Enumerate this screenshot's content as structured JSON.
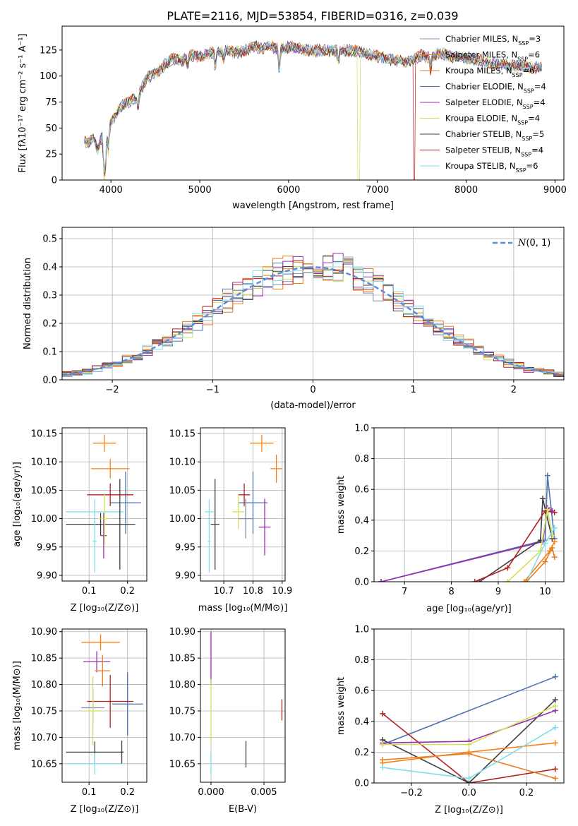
{
  "figure_title": "PLATE=2116, MJD=53854, FIBERID=0316, z=0.039",
  "colors": {
    "Chabrier MILES": "#7f8fb0",
    "Salpeter MILES": "#ff7f0e",
    "Kroupa MILES": "#e67e22",
    "Chabrier ELODIE": "#4c72b0",
    "Salpeter ELODIE": "#9b2fae",
    "Kroupa ELODIE": "#d4e157",
    "Chabrier STELIB": "#404040",
    "Salpeter STELIB": "#b22222",
    "Kroupa STELIB": "#80deea"
  },
  "chart_data": [
    {
      "id": "spectrum",
      "type": "line",
      "title": "PLATE=2116, MJD=53854, FIBERID=0316, z=0.039",
      "xlabel": "wavelength [Angstrom, rest frame]",
      "ylabel": "Flux [fλ10⁻¹⁷ erg cm⁻² s⁻¹ A⁻¹]",
      "xlim": [
        3450,
        9100
      ],
      "ylim": [
        0,
        148
      ],
      "xticks": [
        4000,
        5000,
        6000,
        7000,
        8000,
        9000
      ],
      "yticks": [
        0,
        25,
        50,
        75,
        100,
        125
      ],
      "grid": false,
      "legend_position": "top-right",
      "continuum": {
        "x": [
          3700,
          3750,
          3800,
          3850,
          3900,
          3920,
          3950,
          4000,
          4100,
          4200,
          4300,
          4400,
          4500,
          4600,
          4700,
          4800,
          4900,
          5000,
          5100,
          5200,
          5300,
          5400,
          5500,
          5600,
          5700,
          5800,
          5900,
          6000,
          6100,
          6200,
          6300,
          6400,
          6500,
          6600,
          6700,
          6800,
          6900,
          7000,
          7100,
          7200,
          7300,
          7400,
          7500,
          7600,
          7700,
          7800,
          7900,
          8000,
          8100,
          8200,
          8300,
          8400,
          8500,
          8600,
          8700,
          8800,
          8850
        ],
        "y": [
          38,
          34,
          42,
          30,
          42,
          18,
          45,
          55,
          70,
          75,
          80,
          98,
          102,
          110,
          117,
          115,
          120,
          119,
          122,
          123,
          126,
          122,
          124,
          128,
          127,
          128,
          126,
          128,
          127,
          125,
          124,
          125,
          124,
          124,
          125,
          123,
          121,
          119,
          117,
          115,
          114,
          115,
          120,
          118,
          122,
          120,
          118,
          117,
          116,
          114,
          112,
          111,
          110,
          110,
          109,
          108,
          108
        ]
      },
      "dips": [
        {
          "x": 3935,
          "depth": 25
        },
        {
          "x": 3970,
          "depth": 20
        },
        {
          "x": 4305,
          "depth": 12
        },
        {
          "x": 4863,
          "depth": 8
        },
        {
          "x": 5175,
          "depth": 14
        },
        {
          "x": 5270,
          "depth": 8
        },
        {
          "x": 5895,
          "depth": 20
        },
        {
          "x": 6563,
          "depth": 10
        },
        {
          "x": 7600,
          "depth": 12
        }
      ],
      "dropouts": [
        {
          "series": "Kroupa ELODIE",
          "x": [
            3918,
            3935
          ]
        },
        {
          "series": "Kroupa ELODIE",
          "x": [
            6780,
            6800
          ]
        },
        {
          "series": "Salpeter STELIB",
          "x": [
            7405,
            7420
          ]
        }
      ],
      "series": [
        {
          "name": "Chabrier MILES, NSSP=3",
          "key": "Chabrier MILES"
        },
        {
          "name": "Salpeter MILES, NSSP=6",
          "key": "Salpeter MILES"
        },
        {
          "name": "Kroupa MILES, NSSP=6",
          "key": "Kroupa MILES"
        },
        {
          "name": "Chabrier ELODIE, NSSP=4",
          "key": "Chabrier ELODIE"
        },
        {
          "name": "Salpeter ELODIE, NSSP=4",
          "key": "Salpeter ELODIE"
        },
        {
          "name": "Kroupa ELODIE, NSSP=4",
          "key": "Kroupa ELODIE"
        },
        {
          "name": "Chabrier STELIB, NSSP=5",
          "key": "Chabrier STELIB"
        },
        {
          "name": "Salpeter STELIB, NSSP=4",
          "key": "Salpeter STELIB"
        },
        {
          "name": "Kroupa STELIB, NSSP=6",
          "key": "Kroupa STELIB"
        }
      ],
      "legend": [
        {
          "label": "Chabrier MILES, N",
          "sub": "SSP",
          "tail": "=3",
          "key": "Chabrier MILES"
        },
        {
          "label": "Salpeter MILES, N",
          "sub": "SSP",
          "tail": "=6",
          "key": "Salpeter MILES"
        },
        {
          "label": "Kroupa MILES, N",
          "sub": "SSP",
          "tail": "=6",
          "key": "Kroupa MILES"
        },
        {
          "label": "Chabrier ELODIE, N",
          "sub": "SSP",
          "tail": "=4",
          "key": "Chabrier ELODIE"
        },
        {
          "label": "Salpeter ELODIE, N",
          "sub": "SSP",
          "tail": "=4",
          "key": "Salpeter ELODIE"
        },
        {
          "label": "Kroupa ELODIE, N",
          "sub": "SSP",
          "tail": "=4",
          "key": "Kroupa ELODIE"
        },
        {
          "label": "Chabrier STELIB, N",
          "sub": "SSP",
          "tail": "=5",
          "key": "Chabrier STELIB"
        },
        {
          "label": "Salpeter STELIB, N",
          "sub": "SSP",
          "tail": "=4",
          "key": "Salpeter STELIB"
        },
        {
          "label": "Kroupa STELIB, N",
          "sub": "SSP",
          "tail": "=6",
          "key": "Kroupa STELIB"
        }
      ]
    },
    {
      "id": "residuals",
      "type": "line",
      "xlabel": "(data-model)/error",
      "ylabel": "Normed distribution",
      "xlim": [
        -2.5,
        2.5
      ],
      "ylim": [
        0,
        0.54
      ],
      "xticks": [
        -2,
        -1,
        0,
        1,
        2
      ],
      "yticks": [
        0.0,
        0.1,
        0.2,
        0.3,
        0.4,
        0.5
      ],
      "grid": true,
      "legend_position": "top-right",
      "legend": [
        {
          "label": "N(0, 1)",
          "style": "dashed"
        }
      ],
      "reference_curve": {
        "name": "N(0, 1)",
        "mean": 0,
        "sigma": 1,
        "color": "#5b8fd9"
      },
      "bin_width": 0.1,
      "series_keys": [
        "Chabrier MILES",
        "Salpeter MILES",
        "Kroupa MILES",
        "Chabrier ELODIE",
        "Salpeter ELODIE",
        "Kroupa ELODIE",
        "Chabrier STELIB",
        "Salpeter STELIB",
        "Kroupa STELIB"
      ]
    },
    {
      "id": "age_vs_Z",
      "type": "scatter",
      "xlabel": "Z [log₁₀(Z/Z⊙)]",
      "ylabel": "age  [log₁₀(age/yr)]",
      "xlim": [
        0.03,
        0.25
      ],
      "ylim": [
        9.89,
        10.16
      ],
      "xticks": [
        0.1,
        0.2
      ],
      "yticks": [
        9.9,
        9.95,
        10.0,
        10.05,
        10.1,
        10.15
      ],
      "grid": true,
      "points": [
        {
          "key": "Salpeter MILES",
          "x": 0.14,
          "xerr": 0.03,
          "y": 10.133,
          "yerr": 0.015
        },
        {
          "key": "Salpeter MILES",
          "x": 0.155,
          "xerr": 0.05,
          "y": 10.088,
          "yerr": 0.017
        },
        {
          "key": "Chabrier ELODIE",
          "x": 0.195,
          "xerr": 0.04,
          "y": 10.028,
          "yerr": 0.055
        },
        {
          "key": "Salpeter STELIB",
          "x": 0.155,
          "xerr": 0.06,
          "y": 10.042,
          "yerr": 0.02
        },
        {
          "key": "Kroupa STELIB",
          "x": 0.115,
          "xerr": 0.075,
          "y": 10.012,
          "yerr": 0.022
        },
        {
          "key": "Chabrier STELIB",
          "x": 0.13,
          "xerr": 0.09,
          "y": 9.99,
          "yerr": 0.02
        },
        {
          "key": "Chabrier STELIB",
          "x": 0.18,
          "xerr": 0.005,
          "y": 9.99,
          "yerr": 0.08
        },
        {
          "key": "Salpeter ELODIE",
          "x": 0.138,
          "xerr": 0.008,
          "y": 9.97,
          "yerr": 0.04
        },
        {
          "key": "Kroupa ELODIE",
          "x": 0.14,
          "xerr": 0.015,
          "y": 10.0,
          "yerr": 0.045
        },
        {
          "key": "Kroupa STELIB",
          "x": 0.115,
          "xerr": 0.005,
          "y": 9.96,
          "yerr": 0.055
        }
      ]
    },
    {
      "id": "age_vs_mass",
      "type": "scatter",
      "xlabel": "mass [log₁₀(M/M⊙)]",
      "ylabel": "",
      "xlim": [
        10.62,
        10.91
      ],
      "ylim": [
        9.89,
        10.16
      ],
      "xticks": [
        10.7,
        10.8,
        10.9
      ],
      "yticks": [
        9.9,
        9.95,
        10.0,
        10.05,
        10.1,
        10.15
      ],
      "grid": true,
      "points": [
        {
          "key": "Salpeter MILES",
          "x": 10.83,
          "xerr": 0.04,
          "y": 10.133,
          "yerr": 0.015
        },
        {
          "key": "Salpeter MILES",
          "x": 10.88,
          "xerr": 0.02,
          "y": 10.088,
          "yerr": 0.025
        },
        {
          "key": "Chabrier ELODIE",
          "x": 10.8,
          "xerr": 0.05,
          "y": 10.028,
          "yerr": 0.055
        },
        {
          "key": "Salpeter STELIB",
          "x": 10.77,
          "xerr": 0.02,
          "y": 10.042,
          "yerr": 0.02
        },
        {
          "key": "Kroupa STELIB",
          "x": 10.65,
          "xerr": 0.015,
          "y": 10.012,
          "yerr": 0.022
        },
        {
          "key": "Chabrier STELIB",
          "x": 10.67,
          "xerr": 0.015,
          "y": 9.99,
          "yerr": 0.08
        },
        {
          "key": "Salpeter ELODIE",
          "x": 10.84,
          "xerr": 0.02,
          "y": 9.985,
          "yerr": 0.05
        },
        {
          "key": "Kroupa ELODIE",
          "x": 10.75,
          "xerr": 0.02,
          "y": 10.012,
          "yerr": 0.03
        },
        {
          "key": "Kroupa STELIB",
          "x": 10.65,
          "xerr": 0.005,
          "y": 9.96,
          "yerr": 0.055
        },
        {
          "key": "Chabrier MILES",
          "x": 10.775,
          "xerr": 0.025,
          "y": 10.0,
          "yerr": 0.035
        }
      ]
    },
    {
      "id": "weight_vs_age",
      "type": "line",
      "xlabel": "age  [log₁₀(age/yr)]",
      "ylabel": "mass weight",
      "xlim": [
        6.35,
        10.4
      ],
      "ylim": [
        0.0,
        1.0
      ],
      "xticks": [
        7,
        8,
        9,
        10
      ],
      "yticks": [
        0.0,
        0.2,
        0.4,
        0.6,
        0.8,
        1.0
      ],
      "grid": true,
      "series": [
        {
          "key": "Chabrier ELODIE",
          "x": [
            6.5,
            10.0,
            10.05,
            10.2
          ],
          "y": [
            0.0,
            0.27,
            0.69,
            0.28
          ]
        },
        {
          "key": "Salpeter ELODIE",
          "x": [
            6.5,
            9.95,
            10.05,
            10.15
          ],
          "y": [
            0.0,
            0.26,
            0.48,
            0.46
          ]
        },
        {
          "key": "Chabrier STELIB",
          "x": [
            8.6,
            9.9,
            9.95,
            10.15
          ],
          "y": [
            0.0,
            0.27,
            0.54,
            0.28
          ]
        },
        {
          "key": "Salpeter STELIB",
          "x": [
            8.5,
            9.2,
            10.0,
            10.2
          ],
          "y": [
            0.0,
            0.09,
            0.46,
            0.45
          ]
        },
        {
          "key": "Kroupa ELODIE",
          "x": [
            9.2,
            9.9,
            10.05,
            10.15
          ],
          "y": [
            0.0,
            0.2,
            0.47,
            0.3
          ]
        },
        {
          "key": "Salpeter MILES",
          "x": [
            9.55,
            10.1,
            10.2
          ],
          "y": [
            0.0,
            0.2,
            0.26
          ]
        },
        {
          "key": "Kroupa STELIB",
          "x": [
            9.6,
            10.0,
            10.2
          ],
          "y": [
            0.0,
            0.25,
            0.35
          ]
        },
        {
          "key": "Kroupa MILES",
          "x": [
            9.6,
            10.0,
            10.15,
            10.2
          ],
          "y": [
            0.0,
            0.13,
            0.22,
            0.16
          ]
        }
      ]
    },
    {
      "id": "mass_vs_Z",
      "type": "scatter",
      "xlabel": "Z [log₁₀(Z/Z⊙)]",
      "ylabel": "mass [log₁₀(M/M⊙)]",
      "xlim": [
        0.03,
        0.25
      ],
      "ylim": [
        10.615,
        10.905
      ],
      "xticks": [
        0.1,
        0.2
      ],
      "yticks": [
        10.65,
        10.7,
        10.75,
        10.8,
        10.85,
        10.9
      ],
      "grid": true,
      "points": [
        {
          "key": "Salpeter MILES",
          "x": 0.13,
          "xerr": 0.05,
          "y": 10.88,
          "yerr": 0.015
        },
        {
          "key": "Chabrier ELODIE",
          "x": 0.2,
          "xerr": 0.04,
          "y": 10.763,
          "yerr": 0.06
        },
        {
          "key": "Salpeter ELODIE",
          "x": 0.12,
          "xerr": 0.035,
          "y": 10.843,
          "yerr": 0.02
        },
        {
          "key": "Kroupa MILES",
          "x": 0.135,
          "xerr": 0.02,
          "y": 10.826,
          "yerr": 0.03
        },
        {
          "key": "Salpeter STELIB",
          "x": 0.155,
          "xerr": 0.06,
          "y": 10.768,
          "yerr": 0.05
        },
        {
          "key": "Chabrier MILES",
          "x": 0.11,
          "xerr": 0.03,
          "y": 10.756,
          "yerr": 0.035
        },
        {
          "key": "Kroupa ELODIE",
          "x": 0.11,
          "xerr": 0.025,
          "y": 10.75,
          "yerr": 0.065
        },
        {
          "key": "Chabrier STELIB",
          "x": 0.115,
          "xerr": 0.075,
          "y": 10.672,
          "yerr": 0.02
        },
        {
          "key": "Chabrier STELIB",
          "x": 0.185,
          "xerr": 0.003,
          "y": 10.672,
          "yerr": 0.022
        },
        {
          "key": "Kroupa STELIB",
          "x": 0.115,
          "xerr": 0.07,
          "y": 10.65,
          "yerr": 0.02
        }
      ]
    },
    {
      "id": "mass_vs_ebv",
      "type": "scatter",
      "xlabel": "E(B-V)",
      "ylabel": "",
      "xlim": [
        -0.001,
        0.007
      ],
      "ylim": [
        10.615,
        10.905
      ],
      "xticks": [
        0.0,
        0.005
      ],
      "yticks": [
        10.65,
        10.7,
        10.75,
        10.8,
        10.85,
        10.9
      ],
      "grid": true,
      "points": [
        {
          "key": "Salpeter ELODIE",
          "x": 0.0,
          "xerr": 0.0,
          "y": 10.85,
          "yerr": 0.05
        },
        {
          "key": "Kroupa ELODIE",
          "x": 0.0,
          "xerr": 0.0,
          "y": 10.75,
          "yerr": 0.06
        },
        {
          "key": "Chabrier STELIB",
          "x": 0.0033,
          "xerr": 0.0,
          "y": 10.668,
          "yerr": 0.025
        },
        {
          "key": "Salpeter STELIB",
          "x": 0.0067,
          "xerr": 0.0,
          "y": 10.752,
          "yerr": 0.02
        },
        {
          "key": "Kroupa STELIB",
          "x": 0.0,
          "xerr": 0.0,
          "y": 10.65,
          "yerr": 0.02
        }
      ]
    },
    {
      "id": "weight_vs_Z",
      "type": "line",
      "xlabel": "Z [log₁₀(Z/Z⊙)]",
      "ylabel": "mass weight",
      "xlim": [
        -0.33,
        0.33
      ],
      "ylim": [
        0.0,
        1.0
      ],
      "xticks": [
        -0.2,
        0.0,
        0.2
      ],
      "yticks": [
        0.0,
        0.2,
        0.4,
        0.6,
        0.8,
        1.0
      ],
      "grid": true,
      "series": [
        {
          "key": "Chabrier ELODIE",
          "x": [
            -0.3,
            0.3
          ],
          "y": [
            0.25,
            0.69
          ]
        },
        {
          "key": "Salpeter STELIB",
          "x": [
            -0.3,
            0.0,
            0.3
          ],
          "y": [
            0.45,
            0.0,
            0.09
          ]
        },
        {
          "key": "Chabrier STELIB",
          "x": [
            -0.3,
            0.0,
            0.3
          ],
          "y": [
            0.28,
            0.0,
            0.54
          ]
        },
        {
          "key": "Salpeter ELODIE",
          "x": [
            -0.3,
            0.0,
            0.3
          ],
          "y": [
            0.26,
            0.27,
            0.47
          ]
        },
        {
          "key": "Kroupa ELODIE",
          "x": [
            -0.3,
            0.0,
            0.3
          ],
          "y": [
            0.25,
            0.25,
            0.5
          ]
        },
        {
          "key": "Salpeter MILES",
          "x": [
            -0.3,
            0.0,
            0.3
          ],
          "y": [
            0.13,
            0.2,
            0.26
          ]
        },
        {
          "key": "Kroupa MILES",
          "x": [
            -0.3,
            0.0,
            0.3
          ],
          "y": [
            0.15,
            0.19,
            0.03
          ]
        },
        {
          "key": "Kroupa STELIB",
          "x": [
            -0.3,
            0.0,
            0.3
          ],
          "y": [
            0.1,
            0.03,
            0.36
          ]
        }
      ]
    }
  ]
}
